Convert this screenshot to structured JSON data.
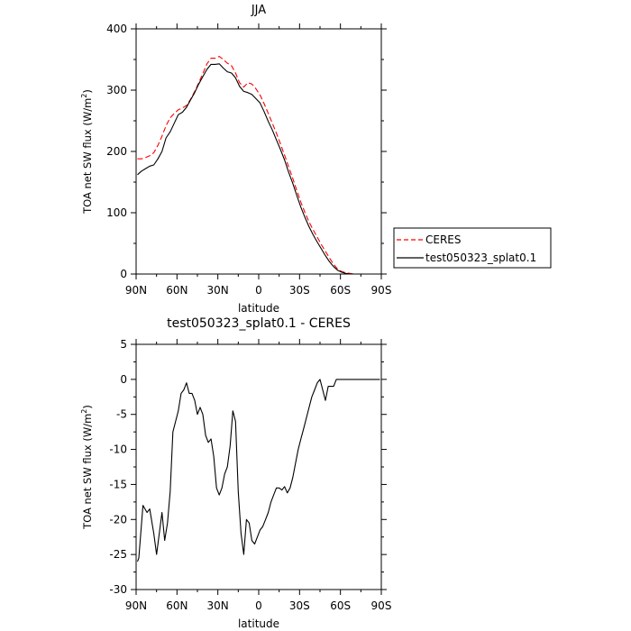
{
  "chart_data": [
    {
      "type": "line",
      "title": "JJA",
      "xlabel": "latitude",
      "ylabel": "TOA net SW flux (W/m²)",
      "ylabel_main": "TOA net SW flux (W/m",
      "ylabel_sup": "2",
      "ylabel_close": ")",
      "xlim": [
        90,
        -90
      ],
      "ylim": [
        0,
        400
      ],
      "x_tick_values": [
        90,
        60,
        30,
        0,
        -30,
        -60,
        -90
      ],
      "x_tick_labels": [
        "90N",
        "60N",
        "30N",
        "0",
        "30S",
        "60S",
        "90S"
      ],
      "y_tick_values": [
        0,
        100,
        200,
        300,
        400
      ],
      "y_tick_labels": [
        "0",
        "100",
        "200",
        "300",
        "400"
      ],
      "legend_position": "right",
      "series": [
        {
          "name": "CERES",
          "color": "#ff0000",
          "dash": true,
          "x": [
            89,
            86,
            83,
            80,
            77,
            74,
            71,
            68,
            65,
            62,
            59,
            56,
            53,
            50,
            47,
            44,
            41,
            38,
            35,
            32,
            29,
            26,
            23,
            20,
            17,
            14,
            11,
            8,
            5,
            2,
            -1,
            -4,
            -7,
            -10,
            -13,
            -16,
            -19,
            -22,
            -25,
            -28,
            -31,
            -34,
            -37,
            -40,
            -43,
            -46,
            -49,
            -52,
            -55,
            -58,
            -61,
            -64,
            -67,
            -70,
            -73,
            -76,
            -79,
            -82,
            -85,
            -88
          ],
          "y": [
            188,
            188,
            190,
            193,
            198,
            210,
            225,
            242,
            255,
            262,
            268,
            271,
            275,
            285,
            298,
            312,
            327,
            343,
            352,
            352,
            355,
            350,
            344,
            340,
            328,
            312,
            305,
            312,
            310,
            302,
            292,
            278,
            262,
            246,
            230,
            212,
            194,
            175,
            156,
            136,
            117,
            100,
            85,
            72,
            60,
            48,
            37,
            26,
            16,
            8,
            4,
            2,
            1,
            0,
            0,
            0,
            0,
            0,
            0,
            0
          ]
        },
        {
          "name": "test050323_splat0.1",
          "color": "#000000",
          "dash": false,
          "x": [
            89,
            86,
            83,
            80,
            77,
            74,
            71,
            68,
            65,
            62,
            59,
            56,
            53,
            50,
            47,
            44,
            41,
            38,
            35,
            32,
            29,
            26,
            23,
            20,
            17,
            14,
            11,
            8,
            5,
            2,
            -1,
            -4,
            -7,
            -10,
            -13,
            -16,
            -19,
            -22,
            -25,
            -28,
            -31,
            -34,
            -37,
            -40,
            -43,
            -46,
            -49,
            -52,
            -55,
            -58,
            -61,
            -64,
            -67,
            -70,
            -73,
            -76,
            -79,
            -82,
            -85,
            -88
          ],
          "y": [
            162,
            168,
            172,
            176,
            178,
            188,
            200,
            222,
            232,
            246,
            260,
            264,
            272,
            284,
            296,
            310,
            322,
            334,
            342,
            342,
            343,
            336,
            330,
            328,
            320,
            306,
            298,
            296,
            293,
            286,
            279,
            265,
            249,
            235,
            219,
            203,
            186,
            166,
            148,
            128,
            109,
            92,
            77,
            64,
            52,
            41,
            30,
            20,
            12,
            6,
            3,
            1,
            0,
            0,
            0,
            0,
            0,
            0,
            0,
            0
          ]
        }
      ]
    },
    {
      "type": "line",
      "title": "test050323_splat0.1 - CERES",
      "xlabel": "latitude",
      "ylabel": "TOA net SW flux (W/m²)",
      "ylabel_main": "TOA net SW flux (W/m",
      "ylabel_sup": "2",
      "ylabel_close": ")",
      "xlim": [
        90,
        -90
      ],
      "ylim": [
        -30,
        5
      ],
      "x_tick_values": [
        90,
        60,
        30,
        0,
        -30,
        -60,
        -90
      ],
      "x_tick_labels": [
        "90N",
        "60N",
        "30N",
        "0",
        "30S",
        "60S",
        "90S"
      ],
      "y_tick_values": [
        5,
        0,
        -5,
        -10,
        -15,
        -20,
        -25,
        -30
      ],
      "y_tick_labels": [
        "5",
        "0",
        "-5",
        "-10",
        "-15",
        "-20",
        "-25",
        "-30"
      ],
      "series": [
        {
          "color": "#000000",
          "dash": false,
          "x": [
            89,
            88,
            85,
            82,
            80,
            77,
            75,
            73,
            71,
            69,
            67,
            65,
            63,
            61,
            59,
            57,
            55,
            53,
            51,
            49,
            47,
            45,
            43,
            41,
            39,
            37,
            35,
            33,
            31,
            29,
            27,
            25,
            23,
            21,
            19,
            17,
            15,
            13,
            11,
            9,
            7,
            5,
            3,
            1,
            -1,
            -3,
            -5,
            -7,
            -9,
            -11,
            -13,
            -15,
            -17,
            -19,
            -21,
            -23,
            -25,
            -27,
            -29,
            -31,
            -33,
            -35,
            -37,
            -39,
            -41,
            -43,
            -45,
            -47,
            -49,
            -51,
            -53,
            -55,
            -57,
            -59,
            -61,
            -63,
            -65,
            -67,
            -69,
            -71,
            -73,
            -75,
            -77,
            -79,
            -81,
            -83,
            -85,
            -87,
            -89
          ],
          "y": [
            -26,
            -25.5,
            -18,
            -19,
            -18.5,
            -22,
            -25,
            -22,
            -19,
            -23,
            -20.5,
            -16,
            -7.5,
            -6,
            -4.5,
            -2,
            -1.5,
            -0.5,
            -2,
            -2,
            -3,
            -5,
            -4,
            -5,
            -8,
            -9,
            -8.5,
            -11,
            -15.5,
            -16.5,
            -15.5,
            -13.5,
            -12.5,
            -9.5,
            -4.5,
            -6,
            -16,
            -22,
            -25,
            -20,
            -20.5,
            -23,
            -23.5,
            -22.5,
            -21.5,
            -21,
            -20,
            -19,
            -17.5,
            -16.5,
            -15.5,
            -15.5,
            -15.8,
            -15.3,
            -16.2,
            -15.5,
            -14,
            -12,
            -10,
            -8.5,
            -7,
            -5.5,
            -4,
            -2.5,
            -1.5,
            -0.5,
            0,
            -1.5,
            -3,
            -1,
            -1,
            -1,
            0,
            0,
            0,
            0,
            0,
            0,
            0,
            0,
            0,
            0,
            0,
            0,
            0,
            0,
            0,
            0,
            0
          ]
        }
      ]
    }
  ]
}
